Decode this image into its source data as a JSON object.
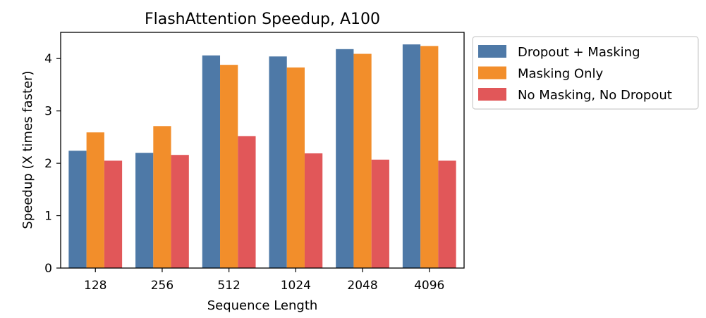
{
  "chart_data": {
    "type": "bar",
    "title": "FlashAttention Speedup, A100",
    "xlabel": "Sequence Length",
    "ylabel": "Speedup (X times faster)",
    "categories": [
      "128",
      "256",
      "512",
      "1024",
      "2048",
      "4096"
    ],
    "ylim": [
      0,
      4.5
    ],
    "yticks": [
      0,
      1,
      2,
      3,
      4
    ],
    "grid": false,
    "legend_position": "outside-right-top",
    "series": [
      {
        "name": "Dropout + Masking",
        "color": "#4e79a7",
        "values": [
          2.24,
          2.2,
          4.06,
          4.04,
          4.18,
          4.27
        ]
      },
      {
        "name": "Masking Only",
        "color": "#f28e2b",
        "values": [
          2.59,
          2.71,
          3.88,
          3.83,
          4.09,
          4.24
        ]
      },
      {
        "name": "No Masking, No Dropout",
        "color": "#e15759",
        "values": [
          2.05,
          2.16,
          2.52,
          2.19,
          2.07,
          2.05
        ]
      }
    ]
  }
}
